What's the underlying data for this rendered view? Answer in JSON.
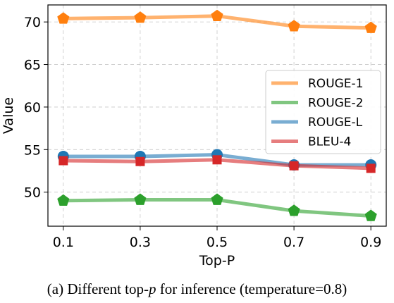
{
  "chart_data": {
    "type": "line",
    "xlabel": "Top-P",
    "ylabel": "Value",
    "x": [
      0.1,
      0.3,
      0.5,
      0.7,
      0.9
    ],
    "x_tick_labels": [
      "0.1",
      "0.3",
      "0.5",
      "0.7",
      "0.9"
    ],
    "y_ticks": [
      50,
      55,
      60,
      65,
      70
    ],
    "ylim": [
      46.0,
      72.0
    ],
    "grid": true,
    "legend_placement": "center-right",
    "series": [
      {
        "name": "ROUGE-1",
        "color": "#ff7f0e",
        "marker": "pentagon",
        "values": [
          70.4,
          70.5,
          70.7,
          69.5,
          69.3
        ]
      },
      {
        "name": "ROUGE-2",
        "color": "#2ca02c",
        "marker": "pentagon",
        "values": [
          49.0,
          49.1,
          49.1,
          47.8,
          47.2
        ]
      },
      {
        "name": "ROUGE-L",
        "color": "#1f77b4",
        "marker": "circle",
        "values": [
          54.2,
          54.2,
          54.4,
          53.2,
          53.2
        ]
      },
      {
        "name": "BLEU-4",
        "color": "#d62728",
        "marker": "square",
        "values": [
          53.7,
          53.6,
          53.8,
          53.1,
          52.8
        ]
      }
    ]
  },
  "caption": {
    "prefix": "(a) Different top-",
    "symbol": "p",
    "suffix": " for inference (temperature=0.8)"
  }
}
